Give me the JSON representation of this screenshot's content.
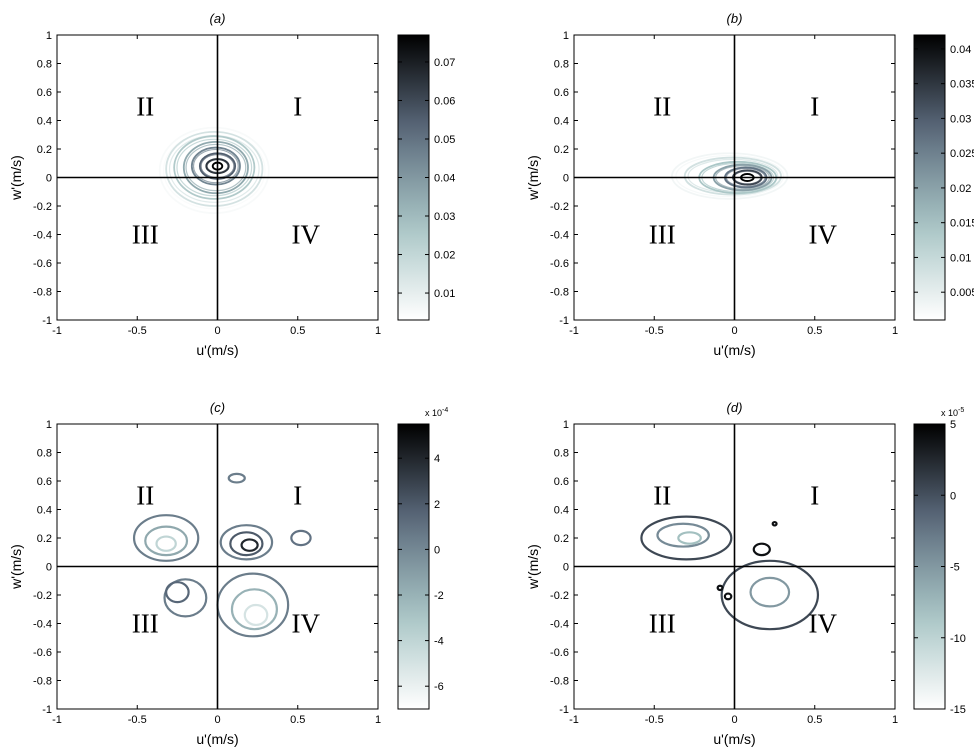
{
  "chart_data": [
    {
      "type": "contour",
      "title": "(a)",
      "xlabel": "u'(m/s)",
      "ylabel": "w'(m/s)",
      "xlim": [
        -1,
        1
      ],
      "ylim": [
        -1,
        1
      ],
      "xticks": [
        "-1",
        "-0.5",
        "0",
        "0.5",
        "1"
      ],
      "yticks": [
        "-1",
        "-0.8",
        "-0.6",
        "-0.4",
        "-0.2",
        "0",
        "0.2",
        "0.4",
        "0.6",
        "0.8",
        "1"
      ],
      "quadrants": [
        "I",
        "II",
        "III",
        "IV"
      ],
      "colorbar": {
        "min": 0.003,
        "max": 0.077,
        "ticks": [
          "0.01",
          "0.02",
          "0.03",
          "0.04",
          "0.05",
          "0.06",
          "0.07"
        ],
        "tick_values": [
          0.01,
          0.02,
          0.03,
          0.04,
          0.05,
          0.06,
          0.07
        ],
        "exponent": ""
      },
      "colormap": [
        "#ffffff",
        "#a7c4c4",
        "#5c6b7d",
        "#000000"
      ],
      "contours": [
        {
          "level": 0.005,
          "center": [
            -0.02,
            0.05
          ],
          "rx": 0.34,
          "ry": 0.3
        },
        {
          "level": 0.015,
          "center": [
            -0.02,
            0.06
          ],
          "rx": 0.3,
          "ry": 0.26
        },
        {
          "level": 0.025,
          "center": [
            -0.02,
            0.07
          ],
          "rx": 0.25,
          "ry": 0.22
        },
        {
          "level": 0.035,
          "center": [
            -0.01,
            0.07
          ],
          "rx": 0.2,
          "ry": 0.18
        },
        {
          "level": 0.045,
          "center": [
            -0.01,
            0.08
          ],
          "rx": 0.15,
          "ry": 0.13
        },
        {
          "level": 0.055,
          "center": [
            0.0,
            0.08
          ],
          "rx": 0.11,
          "ry": 0.09
        },
        {
          "level": 0.065,
          "center": [
            0.0,
            0.08
          ],
          "rx": 0.07,
          "ry": 0.05
        },
        {
          "level": 0.077,
          "center": [
            0.0,
            0.08
          ],
          "rx": 0.03,
          "ry": 0.025
        }
      ]
    },
    {
      "type": "contour",
      "title": "(b)",
      "xlabel": "u'(m/s)",
      "ylabel": "w'(m/s)",
      "xlim": [
        -1,
        1
      ],
      "ylim": [
        -1,
        1
      ],
      "xticks": [
        "-1",
        "-0.5",
        "0",
        "0.5",
        "1"
      ],
      "yticks": [
        "-1",
        "-0.8",
        "-0.6",
        "-0.4",
        "-0.2",
        "0",
        "0.2",
        "0.4",
        "0.6",
        "0.8",
        "1"
      ],
      "quadrants": [
        "I",
        "II",
        "III",
        "IV"
      ],
      "colorbar": {
        "min": 0.001,
        "max": 0.042,
        "ticks": [
          "0.005",
          "0.01",
          "0.015",
          "0.02",
          "0.025",
          "0.03",
          "0.035",
          "0.04"
        ],
        "tick_values": [
          0.005,
          0.01,
          0.015,
          0.02,
          0.025,
          0.03,
          0.035,
          0.04
        ],
        "exponent": ""
      },
      "colormap": [
        "#ffffff",
        "#a7c4c4",
        "#5c6b7d",
        "#000000"
      ],
      "contours": [
        {
          "level": 0.003,
          "center": [
            -0.03,
            0.01
          ],
          "rx": 0.36,
          "ry": 0.16
        },
        {
          "level": 0.008,
          "center": [
            -0.01,
            0.01
          ],
          "rx": 0.3,
          "ry": 0.13
        },
        {
          "level": 0.014,
          "center": [
            0.02,
            0.0
          ],
          "rx": 0.24,
          "ry": 0.11
        },
        {
          "level": 0.02,
          "center": [
            0.05,
            0.0
          ],
          "rx": 0.18,
          "ry": 0.09
        },
        {
          "level": 0.027,
          "center": [
            0.07,
            0.0
          ],
          "rx": 0.13,
          "ry": 0.07
        },
        {
          "level": 0.033,
          "center": [
            0.08,
            0.0
          ],
          "rx": 0.09,
          "ry": 0.05
        },
        {
          "level": 0.042,
          "center": [
            0.08,
            0.0
          ],
          "rx": 0.04,
          "ry": 0.025
        }
      ]
    },
    {
      "type": "contour",
      "title": "(c)",
      "xlabel": "u'(m/s)",
      "ylabel": "w'(m/s)",
      "xlim": [
        -1,
        1
      ],
      "ylim": [
        -1,
        1
      ],
      "xticks": [
        "-1",
        "-0.5",
        "0",
        "0.5",
        "1"
      ],
      "yticks": [
        "-1",
        "-0.8",
        "-0.6",
        "-0.4",
        "-0.2",
        "0",
        "0.2",
        "0.4",
        "0.6",
        "0.8",
        "1"
      ],
      "quadrants": [
        "I",
        "II",
        "III",
        "IV"
      ],
      "colorbar": {
        "min": -7,
        "max": 5.5,
        "ticks": [
          "4",
          "2",
          "0",
          "-2",
          "-4",
          "-6"
        ],
        "tick_values": [
          4,
          2,
          0,
          -2,
          -4,
          -6
        ],
        "exponent": "x 10-4"
      },
      "colormap": [
        "#ffffff",
        "#a7c4c4",
        "#5c6b7d",
        "#000000"
      ],
      "contours": [
        {
          "level": 0.5,
          "center": [
            0.18,
            0.17
          ],
          "rx": 0.16,
          "ry": 0.12
        },
        {
          "level": 2.0,
          "center": [
            0.18,
            0.16
          ],
          "rx": 0.1,
          "ry": 0.08
        },
        {
          "level": 4.0,
          "center": [
            0.2,
            0.15
          ],
          "rx": 0.05,
          "ry": 0.04
        },
        {
          "level": 1.0,
          "center": [
            0.52,
            0.2
          ],
          "rx": 0.06,
          "ry": 0.05
        },
        {
          "level": 0.5,
          "center": [
            0.12,
            0.62
          ],
          "rx": 0.05,
          "ry": 0.03
        },
        {
          "level": 0.5,
          "center": [
            -0.2,
            -0.22
          ],
          "rx": 0.13,
          "ry": 0.13
        },
        {
          "level": 1.5,
          "center": [
            -0.25,
            -0.18
          ],
          "rx": 0.07,
          "ry": 0.07
        },
        {
          "level": 0.5,
          "center": [
            -0.32,
            0.2
          ],
          "rx": 0.2,
          "ry": 0.16
        },
        {
          "level": -1.5,
          "center": [
            -0.32,
            0.18
          ],
          "rx": 0.13,
          "ry": 0.1
        },
        {
          "level": -4.0,
          "center": [
            -0.32,
            0.16
          ],
          "rx": 0.06,
          "ry": 0.05
        },
        {
          "level": 0.5,
          "center": [
            0.22,
            -0.27
          ],
          "rx": 0.22,
          "ry": 0.22
        },
        {
          "level": -2.0,
          "center": [
            0.23,
            -0.3
          ],
          "rx": 0.14,
          "ry": 0.14
        },
        {
          "level": -5.0,
          "center": [
            0.24,
            -0.34
          ],
          "rx": 0.07,
          "ry": 0.07
        }
      ]
    },
    {
      "type": "contour",
      "title": "(d)",
      "xlabel": "u'(m/s)",
      "ylabel": "w'(m/s)",
      "xlim": [
        -1,
        1
      ],
      "ylim": [
        -1,
        1
      ],
      "xticks": [
        "-1",
        "-0.5",
        "0",
        "0.5",
        "1"
      ],
      "yticks": [
        "-1",
        "-0.8",
        "-0.6",
        "-0.4",
        "-0.2",
        "0",
        "0.2",
        "0.4",
        "0.6",
        "0.8",
        "1"
      ],
      "quadrants": [
        "I",
        "II",
        "III",
        "IV"
      ],
      "colorbar": {
        "min": -15,
        "max": 5,
        "ticks": [
          "5",
          "0",
          "-5",
          "-10",
          "-15"
        ],
        "tick_values": [
          5,
          0,
          -5,
          -10,
          -15
        ],
        "exponent": "x 10-5"
      },
      "colormap": [
        "#ffffff",
        "#a7c4c4",
        "#5c6b7d",
        "#000000"
      ],
      "contours": [
        {
          "level": 0.5,
          "center": [
            -0.3,
            0.2
          ],
          "rx": 0.28,
          "ry": 0.15
        },
        {
          "level": -4.0,
          "center": [
            -0.32,
            0.22
          ],
          "rx": 0.16,
          "ry": 0.08
        },
        {
          "level": -8.0,
          "center": [
            -0.28,
            0.2
          ],
          "rx": 0.07,
          "ry": 0.04
        },
        {
          "level": 0.5,
          "center": [
            0.22,
            -0.2
          ],
          "rx": 0.3,
          "ry": 0.24
        },
        {
          "level": -5.0,
          "center": [
            0.22,
            -0.18
          ],
          "rx": 0.12,
          "ry": 0.1
        },
        {
          "level": 4.0,
          "center": [
            0.17,
            0.12
          ],
          "rx": 0.05,
          "ry": 0.04
        },
        {
          "level": 4.0,
          "center": [
            -0.04,
            -0.21
          ],
          "rx": 0.02,
          "ry": 0.02
        },
        {
          "level": 4.0,
          "center": [
            -0.09,
            -0.15
          ],
          "rx": 0.015,
          "ry": 0.015
        },
        {
          "level": 4.0,
          "center": [
            0.25,
            0.3
          ],
          "rx": 0.012,
          "ry": 0.012
        }
      ]
    }
  ]
}
